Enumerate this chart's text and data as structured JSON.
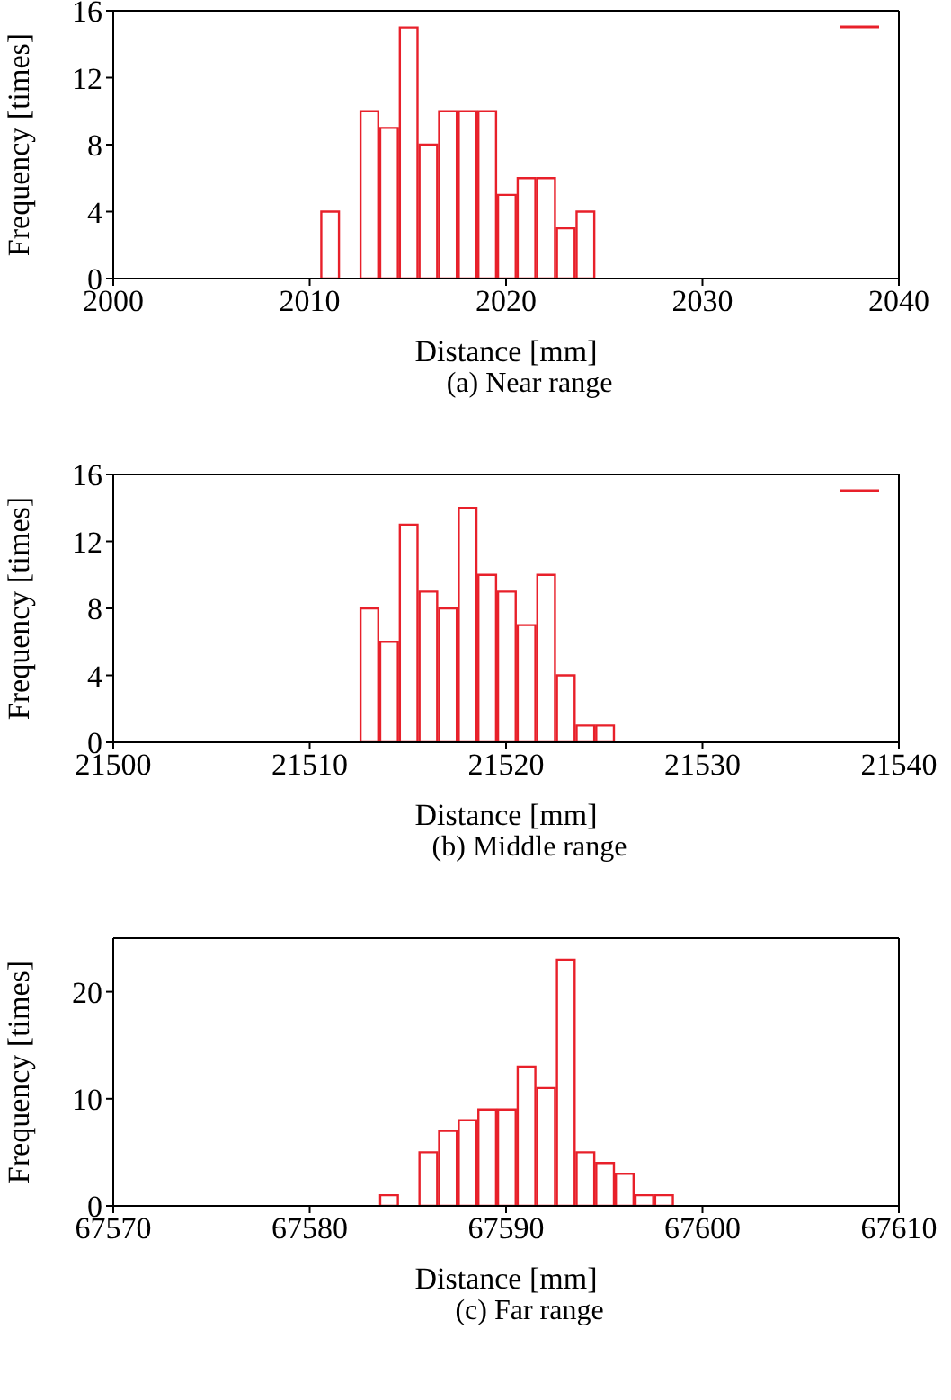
{
  "chart_data": [
    {
      "type": "histogram",
      "title": "(a) Near range",
      "xlabel": "Distance [mm]",
      "ylabel": "Frequency [times]",
      "color": "#e8202a",
      "bins": [
        2010.5,
        2011.5,
        2012.5,
        2013.5,
        2014.5,
        2015.5,
        2016.5,
        2017.5,
        2018.5,
        2019.5,
        2020.5,
        2021.5,
        2022.5,
        2023.5,
        2024.5
      ],
      "values": [
        4,
        0,
        10,
        9,
        15,
        8,
        10,
        10,
        10,
        5,
        6,
        6,
        3,
        4
      ],
      "xlim": [
        2000,
        2040
      ],
      "xticks": [
        2000,
        2010,
        2020,
        2030,
        2040
      ],
      "ylim": [
        0,
        16
      ],
      "yticks": [
        0,
        4,
        8,
        12,
        16
      ]
    },
    {
      "type": "histogram",
      "title": "(b) Middle range",
      "xlabel": "Distance [mm]",
      "ylabel": "Frequency [times]",
      "color": "#e8202a",
      "bins": [
        21512.5,
        21513.5,
        21514.5,
        21515.5,
        21516.5,
        21517.5,
        21518.5,
        21519.5,
        21520.5,
        21521.5,
        21522.5,
        21523.5,
        21524.5,
        21525.5
      ],
      "values": [
        8,
        6,
        13,
        9,
        8,
        14,
        10,
        9,
        7,
        10,
        4,
        1,
        1
      ],
      "xlim": [
        21500,
        21540
      ],
      "xticks": [
        21500,
        21510,
        21520,
        21530,
        21540
      ],
      "ylim": [
        0,
        16
      ],
      "yticks": [
        0,
        4,
        8,
        12,
        16
      ]
    },
    {
      "type": "histogram",
      "title": "(c) Far range",
      "xlabel": "Distance [mm]",
      "ylabel": "Frequency [times]",
      "color": "#e8202a",
      "bins": [
        67583.5,
        67584.5,
        67585.5,
        67586.5,
        67587.5,
        67588.5,
        67589.5,
        67590.5,
        67591.5,
        67592.5,
        67593.5,
        67594.5,
        67595.5,
        67596.5,
        67597.5,
        67598.5
      ],
      "values": [
        1,
        0,
        5,
        7,
        8,
        9,
        9,
        13,
        11,
        23,
        5,
        4,
        3,
        1,
        1
      ],
      "xlim": [
        67570,
        67610
      ],
      "xticks": [
        67570,
        67580,
        67590,
        67600,
        67610
      ],
      "ylim": [
        0,
        25
      ],
      "yticks": [
        0,
        10,
        20
      ]
    }
  ]
}
